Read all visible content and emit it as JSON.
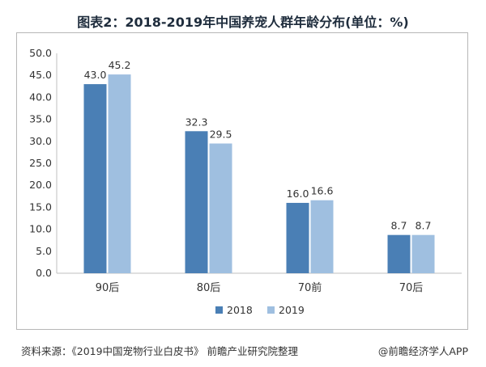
{
  "title": "图表2：2018-2019年中国养宠人群年龄分布(单位：%)",
  "source": "资料来源：《2019中国宠物行业白皮书》 前瞻产业研究院整理",
  "brand": "@前瞻经济学人APP",
  "colors": {
    "s2018": "#4a7fb5",
    "s2019": "#9fbfe0"
  },
  "chart_data": {
    "type": "bar",
    "categories": [
      "90后",
      "80后",
      "70前",
      "70后"
    ],
    "series": [
      {
        "name": "2018",
        "values": [
          43.0,
          32.3,
          16.0,
          8.7
        ]
      },
      {
        "name": "2019",
        "values": [
          45.2,
          29.5,
          16.6,
          8.7
        ]
      }
    ],
    "ylim": [
      0,
      50
    ],
    "yticks": [
      0,
      5,
      10,
      15,
      20,
      25,
      30,
      35,
      40,
      45,
      50
    ],
    "grid": false,
    "legend_position": "bottom-center"
  }
}
